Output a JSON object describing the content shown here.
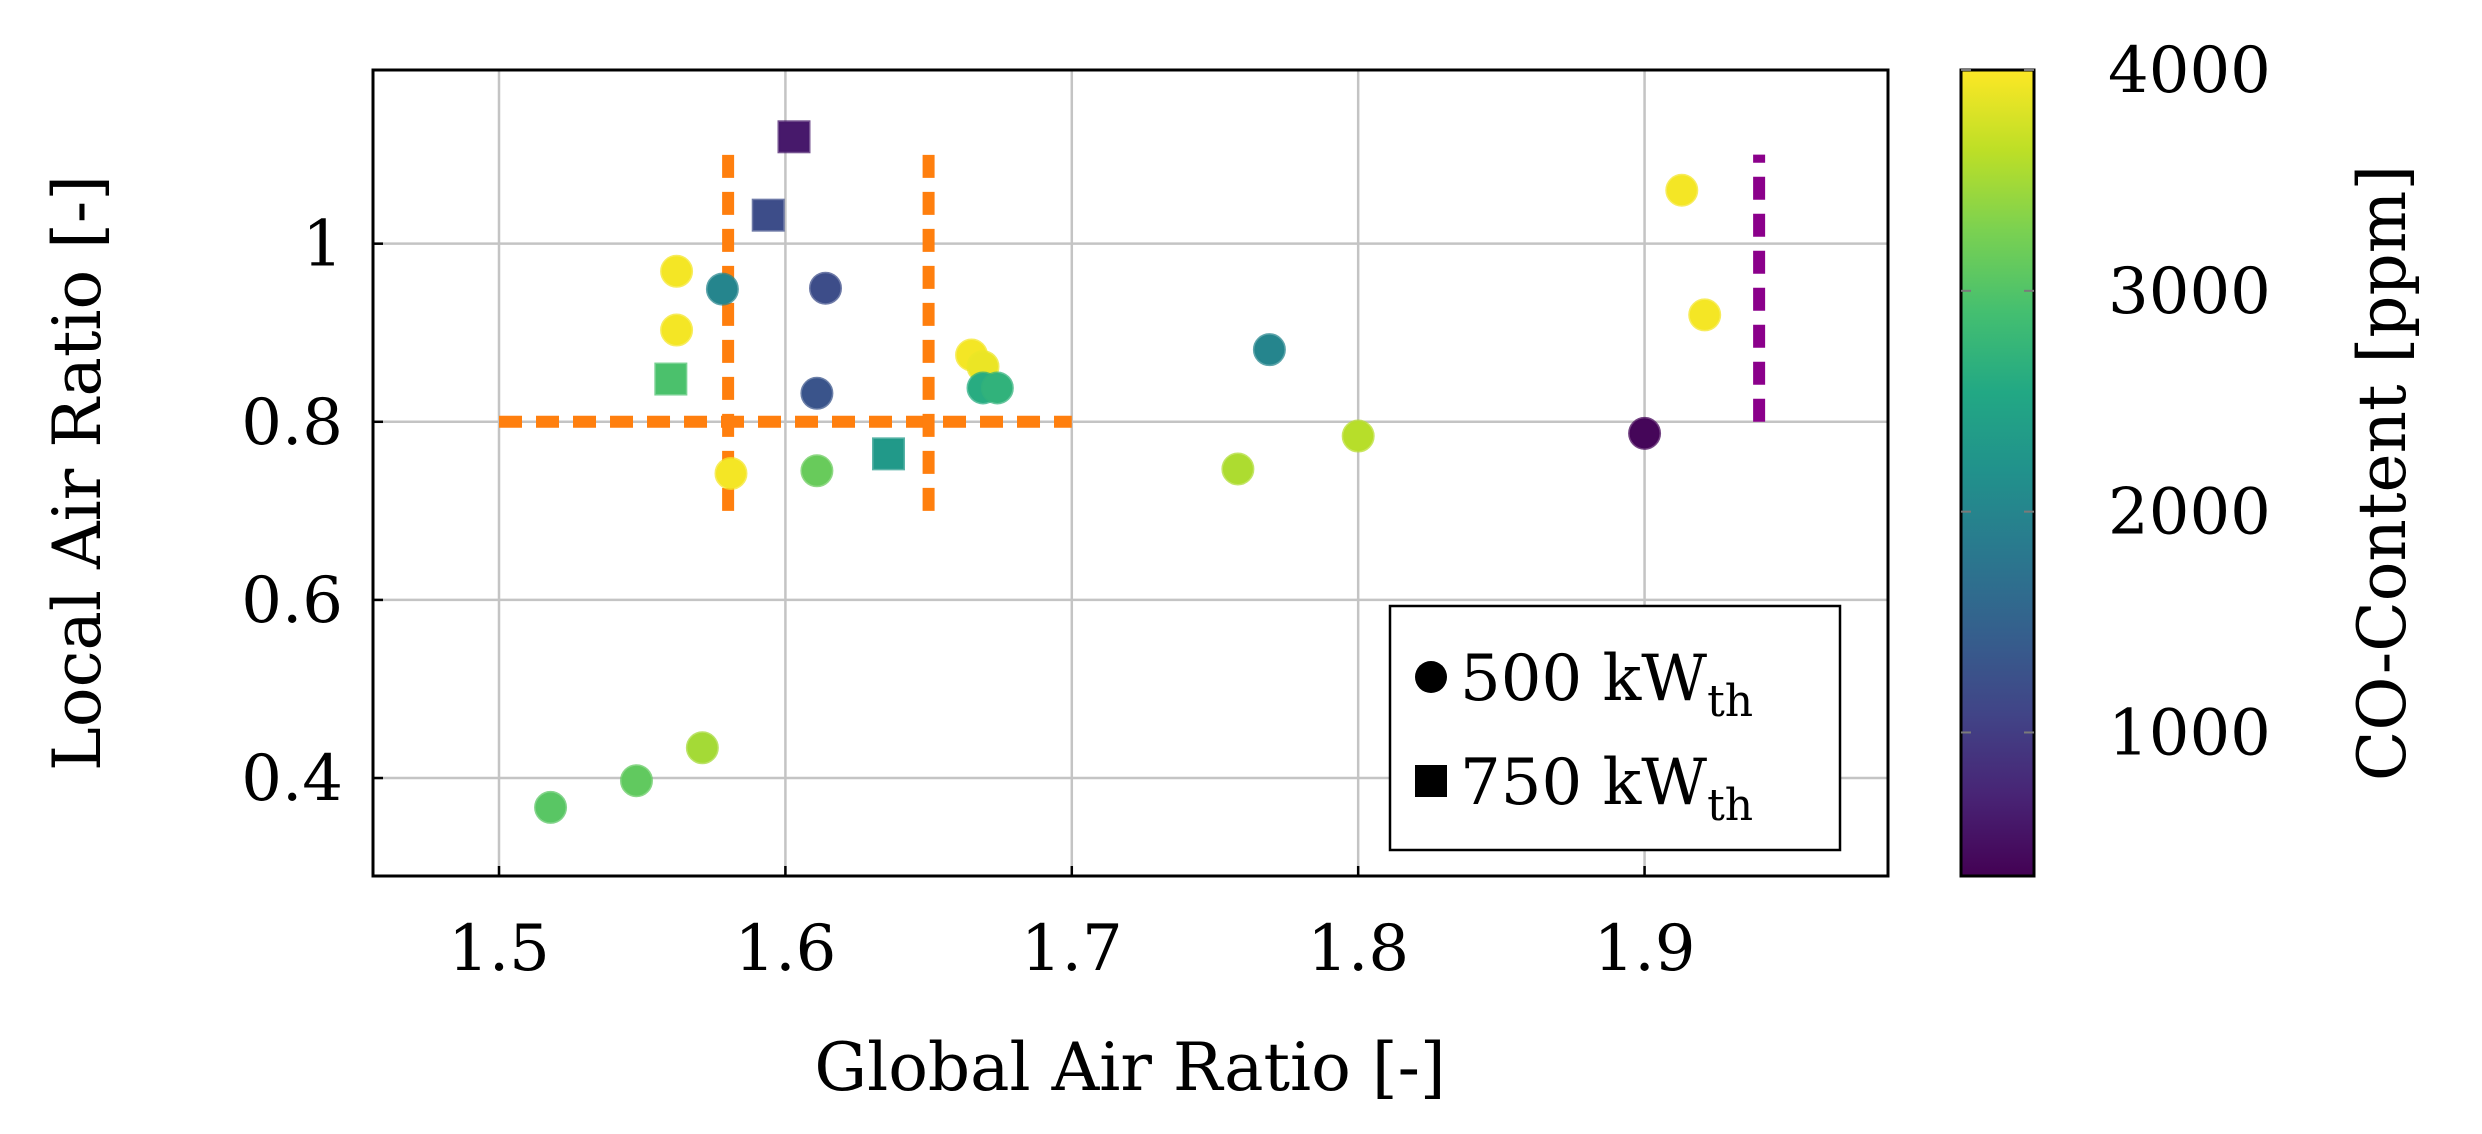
{
  "chart_data": {
    "type": "scatter",
    "xlabel": "Global Air Ratio [-]",
    "ylabel": "Local Air Ratio [-]",
    "xlim": [
      1.456,
      1.985
    ],
    "ylim": [
      0.29,
      1.195
    ],
    "xticks": [
      1.5,
      1.6,
      1.7,
      1.8,
      1.9
    ],
    "xtick_labels": [
      "1.5",
      "1.6",
      "1.7",
      "1.8",
      "1.9"
    ],
    "yticks": [
      0.4,
      0.6,
      0.8,
      1.0
    ],
    "ytick_labels": [
      "0.4",
      "0.6",
      "0.8",
      "1"
    ],
    "grid": true,
    "colorbar": {
      "label": "CO-Content [ppm]",
      "range": [
        350,
        4000
      ],
      "ticks": [
        1000,
        2000,
        3000,
        4000
      ],
      "tick_labels": [
        "1000",
        "2000",
        "3000",
        "4000"
      ],
      "colormap": "viridis"
    },
    "legend": {
      "placement": "bottom-right",
      "entries": [
        {
          "marker": "circle",
          "value": "500 kW",
          "sub": "th"
        },
        {
          "marker": "square",
          "value": "750 kW",
          "sub": "th"
        }
      ]
    },
    "series": [
      {
        "name": "500 kWth",
        "marker": "circle",
        "points": [
          {
            "x": 1.518,
            "y": 0.367,
            "co": 3050
          },
          {
            "x": 1.548,
            "y": 0.397,
            "co": 3100
          },
          {
            "x": 1.571,
            "y": 0.434,
            "co": 3500
          },
          {
            "x": 1.562,
            "y": 0.969,
            "co": 3950
          },
          {
            "x": 1.562,
            "y": 0.903,
            "co": 3950
          },
          {
            "x": 1.578,
            "y": 0.949,
            "co": 2000
          },
          {
            "x": 1.581,
            "y": 0.742,
            "co": 3950
          },
          {
            "x": 1.611,
            "y": 0.832,
            "co": 1300
          },
          {
            "x": 1.614,
            "y": 0.95,
            "co": 1200
          },
          {
            "x": 1.611,
            "y": 0.745,
            "co": 3150
          },
          {
            "x": 1.665,
            "y": 0.875,
            "co": 3950
          },
          {
            "x": 1.669,
            "y": 0.862,
            "co": 3900
          },
          {
            "x": 1.669,
            "y": 0.838,
            "co": 2600
          },
          {
            "x": 1.674,
            "y": 0.838,
            "co": 2700
          },
          {
            "x": 1.769,
            "y": 0.881,
            "co": 2000
          },
          {
            "x": 1.758,
            "y": 0.747,
            "co": 3550
          },
          {
            "x": 1.8,
            "y": 0.784,
            "co": 3600
          },
          {
            "x": 1.9,
            "y": 0.787,
            "co": 400
          },
          {
            "x": 1.913,
            "y": 1.06,
            "co": 3950
          },
          {
            "x": 1.921,
            "y": 0.92,
            "co": 3950
          }
        ]
      },
      {
        "name": "750 kWth",
        "marker": "square",
        "points": [
          {
            "x": 1.56,
            "y": 0.848,
            "co": 2950
          },
          {
            "x": 1.594,
            "y": 1.032,
            "co": 1200
          },
          {
            "x": 1.603,
            "y": 1.12,
            "co": 600
          },
          {
            "x": 1.636,
            "y": 0.764,
            "co": 2300
          }
        ]
      }
    ],
    "annotations": [
      {
        "kind": "dashed-line",
        "color": "#FF7F0E",
        "x": [
          1.5,
          1.7
        ],
        "y": [
          0.8,
          0.8
        ]
      },
      {
        "kind": "dashed-line",
        "color": "#FF7F0E",
        "x": [
          1.58,
          1.58
        ],
        "y": [
          0.7,
          1.1
        ]
      },
      {
        "kind": "dashed-line",
        "color": "#FF7F0E",
        "x": [
          1.65,
          1.65
        ],
        "y": [
          0.7,
          1.1
        ]
      },
      {
        "kind": "dashed-line",
        "color": "#8B008B",
        "x": [
          1.94,
          1.94
        ],
        "y": [
          0.8,
          1.1
        ]
      }
    ]
  }
}
